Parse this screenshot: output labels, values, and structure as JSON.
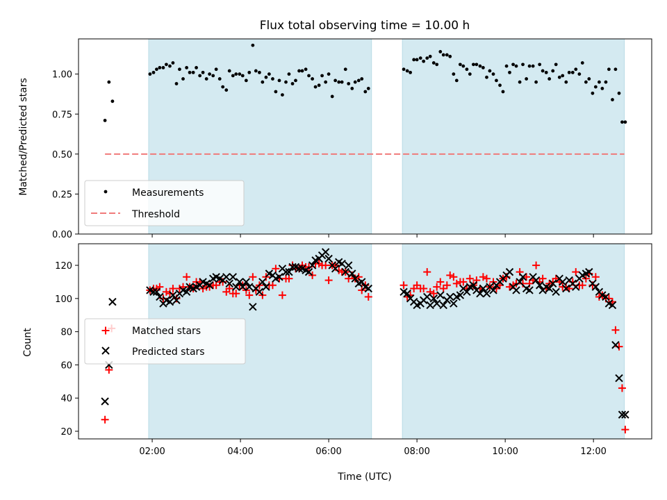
{
  "colors": {
    "band": "#d4eaf1",
    "band_edge": "#b9dbe6",
    "measurement": "#000000",
    "threshold": "#f07a7a",
    "matched": "#ff0000",
    "predicted": "#000000"
  },
  "chart_data": [
    {
      "type": "scatter",
      "title": "Flux total observing time = 10.00 h",
      "xlabel": "",
      "ylabel": "Matched/Predicted stars",
      "xlim": [
        0.33,
        13.32
      ],
      "ylim": [
        0.0,
        1.22
      ],
      "x_ticks": [
        2,
        4,
        6,
        8,
        10,
        12
      ],
      "x_tick_labels": [
        "",
        "",
        "",
        "",
        "",
        ""
      ],
      "y_ticks": [
        0.0,
        0.25,
        0.5,
        0.75,
        1.0
      ],
      "y_tick_labels": [
        "0.00",
        "0.25",
        "0.50",
        "0.75",
        "1.00"
      ],
      "shaded_intervals": [
        [
          1.92,
          6.97
        ],
        [
          7.67,
          12.7
        ]
      ],
      "legend": [
        "Measurements",
        "Threshold"
      ],
      "legend_loc": "lower-left",
      "threshold": {
        "name": "Threshold",
        "y": 0.5,
        "x_range": [
          0.93,
          12.7
        ]
      },
      "series": [
        {
          "name": "Measurements",
          "marker": "dot",
          "x": [
            0.93,
            1.02,
            1.1,
            1.95,
            2.03,
            2.1,
            2.17,
            2.25,
            2.32,
            2.4,
            2.47,
            2.55,
            2.62,
            2.7,
            2.78,
            2.85,
            2.93,
            3.0,
            3.08,
            3.15,
            3.23,
            3.3,
            3.38,
            3.45,
            3.53,
            3.6,
            3.68,
            3.75,
            3.83,
            3.9,
            3.98,
            4.05,
            4.13,
            4.2,
            4.28,
            4.35,
            4.43,
            4.5,
            4.58,
            4.65,
            4.73,
            4.8,
            4.88,
            4.95,
            5.03,
            5.1,
            5.18,
            5.25,
            5.33,
            5.4,
            5.48,
            5.55,
            5.63,
            5.7,
            5.78,
            5.85,
            5.93,
            6.0,
            6.08,
            6.15,
            6.23,
            6.3,
            6.38,
            6.45,
            6.53,
            6.6,
            6.68,
            6.75,
            6.83,
            6.9,
            7.7,
            7.78,
            7.85,
            7.93,
            8.0,
            8.08,
            8.15,
            8.23,
            8.3,
            8.38,
            8.45,
            8.53,
            8.6,
            8.68,
            8.75,
            8.83,
            8.9,
            8.98,
            9.05,
            9.13,
            9.2,
            9.28,
            9.35,
            9.43,
            9.5,
            9.58,
            9.65,
            9.73,
            9.8,
            9.88,
            9.95,
            10.03,
            10.1,
            10.18,
            10.25,
            10.33,
            10.4,
            10.48,
            10.55,
            10.63,
            10.7,
            10.78,
            10.85,
            10.93,
            11.0,
            11.08,
            11.15,
            11.23,
            11.3,
            11.38,
            11.45,
            11.53,
            11.6,
            11.68,
            11.75,
            11.83,
            11.9,
            11.98,
            12.05,
            12.13,
            12.2,
            12.28,
            12.35,
            12.43,
            12.5,
            12.58,
            12.65,
            12.72
          ],
          "values": [
            0.71,
            0.95,
            0.83,
            1.0,
            1.01,
            1.03,
            1.04,
            1.04,
            1.06,
            1.05,
            1.07,
            0.94,
            1.03,
            0.97,
            1.04,
            1.01,
            1.01,
            1.04,
            0.99,
            1.01,
            0.97,
            1.0,
            0.99,
            1.03,
            0.97,
            0.92,
            0.9,
            1.02,
            0.99,
            1.0,
            1.0,
            0.99,
            0.96,
            1.01,
            1.18,
            1.02,
            1.01,
            0.95,
            0.98,
            1.0,
            0.97,
            0.89,
            0.96,
            0.87,
            0.95,
            1.0,
            0.94,
            0.96,
            1.02,
            1.02,
            1.03,
            0.99,
            0.97,
            0.92,
            0.93,
            0.99,
            0.95,
            1.0,
            0.86,
            0.96,
            0.95,
            0.95,
            1.03,
            0.94,
            0.91,
            0.95,
            0.96,
            0.97,
            0.89,
            0.91,
            1.03,
            1.02,
            1.01,
            1.09,
            1.09,
            1.1,
            1.08,
            1.1,
            1.11,
            1.07,
            1.06,
            1.14,
            1.12,
            1.12,
            1.11,
            1.0,
            0.96,
            1.06,
            1.05,
            1.03,
            1.0,
            1.06,
            1.06,
            1.05,
            1.04,
            0.98,
            1.02,
            1.0,
            0.96,
            0.93,
            0.89,
            1.05,
            1.01,
            1.06,
            1.05,
            0.95,
            1.06,
            0.97,
            1.05,
            1.05,
            0.95,
            1.06,
            1.02,
            1.01,
            0.97,
            1.02,
            1.06,
            0.98,
            0.99,
            0.95,
            1.01,
            1.01,
            1.03,
            1.0,
            1.07,
            0.95,
            0.97,
            0.88,
            0.92,
            0.95,
            0.91,
            0.95,
            1.03,
            0.84,
            1.03,
            0.88,
            0.7,
            0.7
          ]
        }
      ]
    },
    {
      "type": "scatter",
      "title": "",
      "xlabel": "Time (UTC)",
      "ylabel": "Count",
      "xlim": [
        0.33,
        13.32
      ],
      "ylim": [
        15.4,
        133
      ],
      "x_ticks": [
        2,
        4,
        6,
        8,
        10,
        12
      ],
      "x_tick_labels": [
        "02:00",
        "04:00",
        "06:00",
        "08:00",
        "10:00",
        "12:00"
      ],
      "y_ticks": [
        20,
        40,
        60,
        80,
        100,
        120
      ],
      "y_tick_labels": [
        "20",
        "40",
        "60",
        "80",
        "100",
        "120"
      ],
      "shaded_intervals": [
        [
          1.92,
          6.97
        ],
        [
          7.67,
          12.7
        ]
      ],
      "legend": [
        "Matched stars",
        "Predicted stars"
      ],
      "legend_loc": "center-left",
      "series": [
        {
          "name": "Matched stars",
          "marker": "plus",
          "x": [
            0.93,
            1.02,
            1.08,
            1.95,
            2.03,
            2.1,
            2.17,
            2.25,
            2.32,
            2.4,
            2.47,
            2.55,
            2.62,
            2.7,
            2.78,
            2.85,
            2.93,
            3.0,
            3.08,
            3.15,
            3.23,
            3.3,
            3.38,
            3.45,
            3.53,
            3.6,
            3.68,
            3.75,
            3.83,
            3.9,
            3.98,
            4.05,
            4.13,
            4.2,
            4.28,
            4.35,
            4.43,
            4.5,
            4.58,
            4.65,
            4.73,
            4.8,
            4.88,
            4.95,
            5.03,
            5.1,
            5.18,
            5.25,
            5.33,
            5.4,
            5.48,
            5.55,
            5.63,
            5.7,
            5.78,
            5.85,
            5.93,
            6.0,
            6.08,
            6.15,
            6.23,
            6.3,
            6.38,
            6.45,
            6.53,
            6.6,
            6.68,
            6.75,
            6.83,
            6.9,
            7.7,
            7.78,
            7.85,
            7.93,
            8.0,
            8.08,
            8.15,
            8.23,
            8.3,
            8.38,
            8.45,
            8.53,
            8.6,
            8.68,
            8.75,
            8.83,
            8.9,
            8.98,
            9.05,
            9.13,
            9.2,
            9.28,
            9.35,
            9.43,
            9.5,
            9.58,
            9.65,
            9.73,
            9.8,
            9.88,
            9.95,
            10.03,
            10.1,
            10.18,
            10.25,
            10.33,
            10.4,
            10.48,
            10.55,
            10.63,
            10.7,
            10.78,
            10.85,
            10.93,
            11.0,
            11.08,
            11.15,
            11.23,
            11.3,
            11.38,
            11.45,
            11.53,
            11.6,
            11.68,
            11.75,
            11.83,
            11.9,
            11.98,
            12.05,
            12.13,
            12.2,
            12.28,
            12.35,
            12.43,
            12.5,
            12.58,
            12.65,
            12.72
          ],
          "values": [
            27,
            57,
            82,
            105,
            106,
            106,
            107,
            100,
            104,
            103,
            106,
            100,
            106,
            107,
            113,
            107,
            106,
            110,
            110,
            106,
            107,
            107,
            108,
            108,
            110,
            110,
            104,
            106,
            103,
            103,
            108,
            108,
            105,
            102,
            113,
            105,
            108,
            102,
            113,
            108,
            108,
            118,
            112,
            102,
            112,
            112,
            120,
            118,
            118,
            120,
            119,
            119,
            114,
            121,
            121,
            120,
            120,
            111,
            120,
            120,
            117,
            116,
            116,
            112,
            114,
            112,
            113,
            105,
            108,
            101,
            108,
            101,
            102,
            106,
            108,
            106,
            106,
            116,
            104,
            103,
            107,
            110,
            106,
            108,
            114,
            113,
            109,
            110,
            110,
            106,
            112,
            108,
            111,
            106,
            113,
            112,
            107,
            110,
            106,
            108,
            112,
            113,
            107,
            108,
            109,
            116,
            109,
            113,
            109,
            111,
            120,
            110,
            112,
            106,
            109,
            110,
            112,
            110,
            107,
            107,
            106,
            110,
            116,
            108,
            108,
            112,
            115,
            108,
            113,
            101,
            102,
            100,
            100,
            98,
            81,
            71,
            46,
            21
          ]
        },
        {
          "name": "Predicted stars",
          "marker": "x",
          "x": [
            0.93,
            1.02,
            1.1,
            1.95,
            2.03,
            2.1,
            2.17,
            2.25,
            2.32,
            2.4,
            2.47,
            2.55,
            2.62,
            2.7,
            2.78,
            2.85,
            2.93,
            3.0,
            3.08,
            3.15,
            3.23,
            3.3,
            3.38,
            3.45,
            3.53,
            3.6,
            3.68,
            3.75,
            3.83,
            3.9,
            3.98,
            4.05,
            4.13,
            4.2,
            4.28,
            4.35,
            4.43,
            4.5,
            4.58,
            4.65,
            4.73,
            4.8,
            4.88,
            4.95,
            5.03,
            5.1,
            5.18,
            5.25,
            5.33,
            5.4,
            5.48,
            5.55,
            5.63,
            5.7,
            5.78,
            5.85,
            5.93,
            6.0,
            6.08,
            6.15,
            6.23,
            6.3,
            6.38,
            6.45,
            6.53,
            6.6,
            6.68,
            6.75,
            6.83,
            6.9,
            7.7,
            7.78,
            7.85,
            7.93,
            8.0,
            8.08,
            8.15,
            8.23,
            8.3,
            8.38,
            8.45,
            8.53,
            8.6,
            8.68,
            8.75,
            8.83,
            8.9,
            8.98,
            9.05,
            9.13,
            9.2,
            9.28,
            9.35,
            9.43,
            9.5,
            9.58,
            9.65,
            9.73,
            9.8,
            9.88,
            9.95,
            10.03,
            10.1,
            10.18,
            10.25,
            10.33,
            10.4,
            10.48,
            10.55,
            10.63,
            10.7,
            10.78,
            10.85,
            10.93,
            11.0,
            11.08,
            11.15,
            11.23,
            11.3,
            11.38,
            11.45,
            11.53,
            11.6,
            11.68,
            11.75,
            11.83,
            11.9,
            11.98,
            12.05,
            12.13,
            12.2,
            12.28,
            12.35,
            12.43,
            12.5,
            12.58,
            12.65,
            12.72
          ],
          "values": [
            38,
            60,
            98,
            105,
            104,
            104,
            101,
            97,
            99,
            98,
            102,
            99,
            103,
            105,
            104,
            107,
            106,
            107,
            108,
            110,
            109,
            108,
            112,
            113,
            112,
            111,
            113,
            109,
            113,
            107,
            110,
            107,
            110,
            107,
            95,
            106,
            104,
            110,
            107,
            115,
            114,
            112,
            113,
            118,
            116,
            116,
            119,
            119,
            118,
            118,
            117,
            116,
            120,
            123,
            124,
            126,
            128,
            124,
            120,
            118,
            122,
            121,
            116,
            120,
            115,
            112,
            109,
            110,
            107,
            106,
            104,
            103,
            100,
            98,
            96,
            97,
            99,
            101,
            96,
            100,
            97,
            102,
            96,
            99,
            101,
            97,
            101,
            102,
            106,
            104,
            107,
            108,
            105,
            103,
            106,
            103,
            107,
            105,
            108,
            110,
            112,
            114,
            116,
            107,
            105,
            110,
            113,
            106,
            105,
            113,
            111,
            108,
            105,
            107,
            106,
            109,
            104,
            112,
            110,
            106,
            111,
            109,
            107,
            112,
            114,
            115,
            116,
            109,
            107,
            104,
            102,
            101,
            97,
            96,
            72,
            52,
            30,
            30
          ]
        }
      ]
    }
  ]
}
